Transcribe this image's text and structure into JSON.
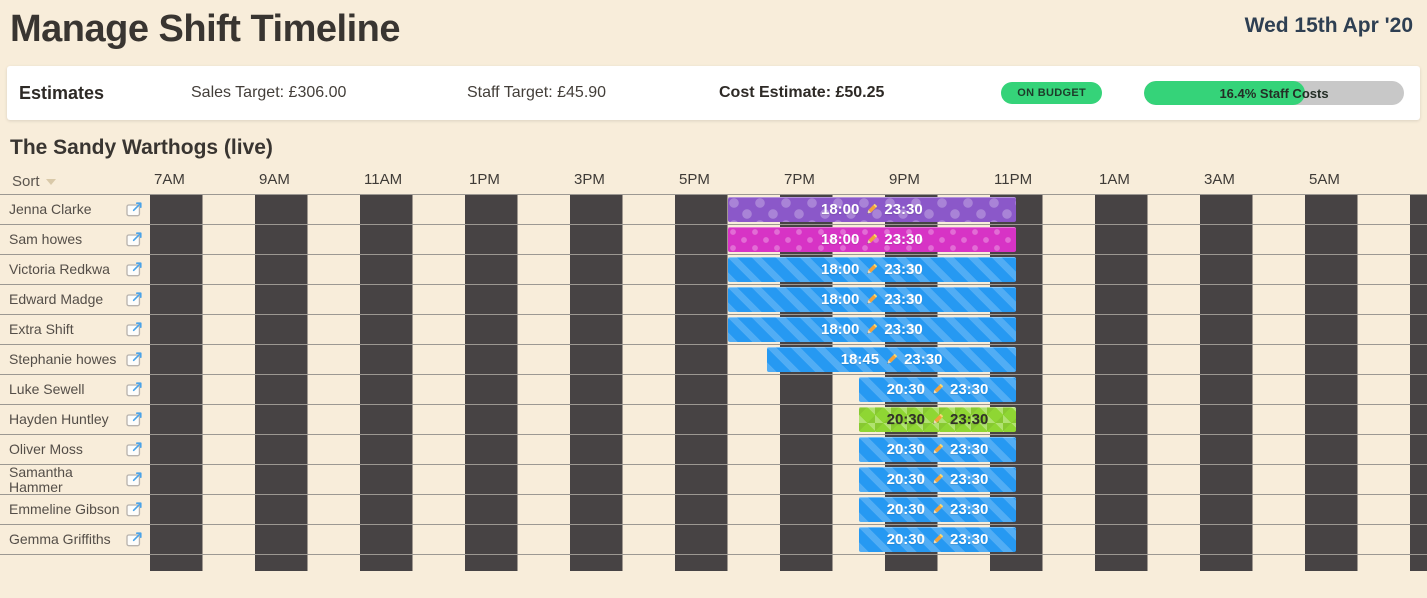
{
  "header": {
    "title": "Manage Shift Timeline",
    "date": "Wed 15th Apr '20"
  },
  "estimates": {
    "label": "Estimates",
    "sales_target": "Sales Target: £306.00",
    "staff_target": "Staff Target: £45.90",
    "cost_estimate": "Cost Estimate: £50.25",
    "budget_badge": "ON BUDGET",
    "staff_costs_label": "16.4% Staff Costs",
    "staff_costs_fill_percent": 62
  },
  "section": {
    "title": "The Sandy Warthogs (live)"
  },
  "timeline": {
    "sort_label": "Sort",
    "hour_labels": [
      "7AM",
      "9AM",
      "11AM",
      "1PM",
      "3PM",
      "5PM",
      "7PM",
      "9PM",
      "11PM",
      "1AM",
      "3AM",
      "5AM"
    ],
    "rows": [
      {
        "name": "Jenna Clarke",
        "shift": {
          "start": "18:00",
          "end": "23:30",
          "style": "purple-dots"
        }
      },
      {
        "name": "Sam howes",
        "shift": {
          "start": "18:00",
          "end": "23:30",
          "style": "pink-dots"
        }
      },
      {
        "name": "Victoria Redkwa",
        "shift": {
          "start": "18:00",
          "end": "23:30",
          "style": "blue-stripes"
        }
      },
      {
        "name": "Edward Madge",
        "shift": {
          "start": "18:00",
          "end": "23:30",
          "style": "blue-stripes"
        }
      },
      {
        "name": "Extra Shift",
        "shift": {
          "start": "18:00",
          "end": "23:30",
          "style": "blue-stripes"
        }
      },
      {
        "name": "Stephanie howes",
        "shift": {
          "start": "18:45",
          "end": "23:30",
          "style": "blue-stripes"
        }
      },
      {
        "name": "Luke Sewell",
        "shift": {
          "start": "20:30",
          "end": "23:30",
          "style": "blue-stripes"
        }
      },
      {
        "name": "Hayden Huntley",
        "shift": {
          "start": "20:30",
          "end": "23:30",
          "style": "green-triangles"
        }
      },
      {
        "name": "Oliver Moss",
        "shift": {
          "start": "20:30",
          "end": "23:30",
          "style": "blue-stripes"
        }
      },
      {
        "name": "Samantha Hammer",
        "shift": {
          "start": "20:30",
          "end": "23:30",
          "style": "blue-stripes"
        }
      },
      {
        "name": "Emmeline Gibson",
        "shift": {
          "start": "20:30",
          "end": "23:30",
          "style": "blue-stripes"
        }
      },
      {
        "name": "Gemma Griffiths",
        "shift": {
          "start": "20:30",
          "end": "23:30",
          "style": "blue-stripes"
        }
      }
    ]
  },
  "icons": {
    "edit": "pencil-icon",
    "open_shift": "open-in-window-icon",
    "sort_caret": "chevron-down-icon"
  },
  "colors": {
    "page_bg": "#f8edda",
    "column_dark": "#474344",
    "accent_green": "#35d379",
    "progress_track": "#c8c8c8",
    "bar_purple": "#8b58c9",
    "bar_pink": "#d733c5",
    "bar_blue": "#2699f2",
    "bar_green": "#8fd633",
    "text_dark": "#38342f",
    "date_navy": "#2e3f52"
  }
}
